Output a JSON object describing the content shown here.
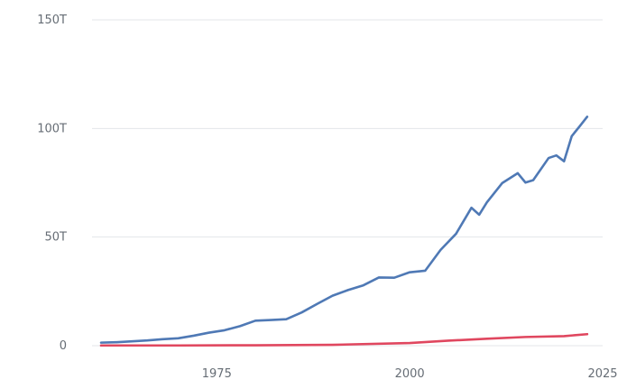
{
  "chart_data": {
    "type": "line",
    "title": "",
    "xlabel": "",
    "ylabel": "",
    "xlim": [
      1960,
      2025
    ],
    "ylim": [
      0,
      150
    ],
    "x_ticks": [
      1975,
      2000,
      2025
    ],
    "x_tick_labels": [
      "1975",
      "2000",
      "2025"
    ],
    "y_ticks": [
      0,
      50,
      100,
      150
    ],
    "y_tick_labels": [
      "0",
      "50T",
      "100T",
      "150T"
    ],
    "grid": true,
    "legend": "none",
    "series": [
      {
        "color": "#4f79b5",
        "x": [
          1960,
          1962,
          1964,
          1966,
          1968,
          1970,
          1972,
          1974,
          1976,
          1978,
          1980,
          1982,
          1984,
          1986,
          1988,
          1990,
          1992,
          1994,
          1996,
          1998,
          2000,
          2002,
          2004,
          2006,
          2008,
          2009,
          2010,
          2012,
          2014,
          2015,
          2016,
          2018,
          2019,
          2020,
          2021,
          2022,
          2023
        ],
        "values": [
          1.4,
          1.6,
          2.0,
          2.4,
          3.0,
          3.4,
          4.6,
          6.0,
          7.1,
          9.0,
          11.5,
          11.8,
          12.2,
          15.3,
          19.2,
          23.0,
          25.6,
          27.8,
          31.4,
          31.3,
          33.8,
          34.5,
          44.1,
          51.5,
          63.5,
          60.3,
          66.0,
          74.9,
          79.4,
          75.1,
          76.2,
          86.4,
          87.6,
          84.9,
          96.5,
          100.9,
          105.4
        ]
      },
      {
        "color": "#e0475f",
        "x": [
          1960,
          1970,
          1980,
          1990,
          2000,
          2005,
          2010,
          2015,
          2020,
          2023
        ],
        "values": [
          0.1,
          0.1,
          0.2,
          0.4,
          1.2,
          2.3,
          3.2,
          4.0,
          4.4,
          5.3
        ]
      }
    ]
  }
}
